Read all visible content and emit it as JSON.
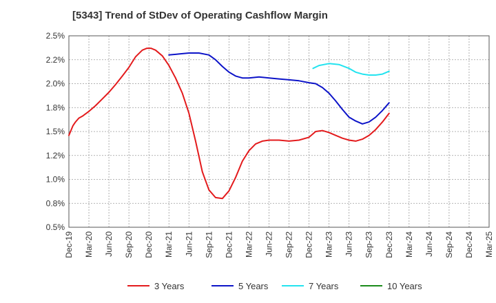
{
  "chart_data": {
    "type": "line",
    "title": "[5343]  Trend of StDev of Operating Cashflow Margin",
    "xlabel": "",
    "ylabel": "",
    "grid": true,
    "legend_position": "bottom",
    "x_tick_labels": [
      "Dec-19",
      "Mar-20",
      "Jun-20",
      "Sep-20",
      "Dec-20",
      "Mar-21",
      "Jun-21",
      "Sep-21",
      "Dec-21",
      "Mar-22",
      "Jun-22",
      "Sep-22",
      "Dec-22",
      "Mar-23",
      "Jun-23",
      "Sep-23",
      "Dec-23",
      "Mar-24",
      "Jun-24",
      "Sep-24",
      "Dec-24",
      "Mar-25"
    ],
    "y_tick_labels": [
      "0.5%",
      "0.8%",
      "1.0%",
      "1.2%",
      "1.5%",
      "1.8%",
      "2.0%",
      "2.2%",
      "2.5%"
    ],
    "ylim": [
      0.5,
      2.5
    ],
    "series": [
      {
        "name": "3 Years",
        "color": "#e31a1c",
        "points": [
          [
            0,
            1.46
          ],
          [
            0.2,
            1.56
          ],
          [
            0.33,
            1.6
          ],
          [
            0.5,
            1.64
          ],
          [
            0.67,
            1.66
          ],
          [
            1,
            1.71
          ],
          [
            1.33,
            1.77
          ],
          [
            1.67,
            1.84
          ],
          [
            2,
            1.91
          ],
          [
            2.33,
            1.99
          ],
          [
            2.67,
            2.08
          ],
          [
            3,
            2.17
          ],
          [
            3.33,
            2.28
          ],
          [
            3.67,
            2.35
          ],
          [
            3.9,
            2.37
          ],
          [
            4.1,
            2.37
          ],
          [
            4.33,
            2.35
          ],
          [
            4.67,
            2.29
          ],
          [
            5,
            2.19
          ],
          [
            5.33,
            2.06
          ],
          [
            5.67,
            1.9
          ],
          [
            6,
            1.69
          ],
          [
            6.33,
            1.4
          ],
          [
            6.67,
            1.08
          ],
          [
            7,
            0.89
          ],
          [
            7.33,
            0.81
          ],
          [
            7.67,
            0.8
          ],
          [
            8,
            0.88
          ],
          [
            8.33,
            1.02
          ],
          [
            8.67,
            1.19
          ],
          [
            9,
            1.3
          ],
          [
            9.33,
            1.37
          ],
          [
            9.67,
            1.4
          ],
          [
            10,
            1.41
          ],
          [
            10.5,
            1.41
          ],
          [
            11,
            1.4
          ],
          [
            11.5,
            1.41
          ],
          [
            12,
            1.44
          ],
          [
            12.33,
            1.5
          ],
          [
            12.67,
            1.51
          ],
          [
            13,
            1.49
          ],
          [
            13.33,
            1.46
          ],
          [
            13.67,
            1.43
          ],
          [
            14,
            1.41
          ],
          [
            14.33,
            1.4
          ],
          [
            14.67,
            1.42
          ],
          [
            15,
            1.46
          ],
          [
            15.33,
            1.52
          ],
          [
            15.67,
            1.6
          ],
          [
            16,
            1.69
          ]
        ]
      },
      {
        "name": "5 Years",
        "color": "#0c13c8",
        "points": [
          [
            5,
            2.3
          ],
          [
            5.5,
            2.31
          ],
          [
            6,
            2.32
          ],
          [
            6.5,
            2.32
          ],
          [
            7,
            2.3
          ],
          [
            7.33,
            2.25
          ],
          [
            7.67,
            2.18
          ],
          [
            8,
            2.12
          ],
          [
            8.33,
            2.08
          ],
          [
            8.67,
            2.06
          ],
          [
            9,
            2.06
          ],
          [
            9.5,
            2.07
          ],
          [
            10,
            2.06
          ],
          [
            10.5,
            2.05
          ],
          [
            11,
            2.04
          ],
          [
            11.5,
            2.03
          ],
          [
            12,
            2.01
          ],
          [
            12.33,
            2.0
          ],
          [
            12.67,
            1.96
          ],
          [
            13,
            1.9
          ],
          [
            13.33,
            1.82
          ],
          [
            13.67,
            1.73
          ],
          [
            14,
            1.65
          ],
          [
            14.33,
            1.61
          ],
          [
            14.67,
            1.58
          ],
          [
            15,
            1.6
          ],
          [
            15.33,
            1.65
          ],
          [
            15.67,
            1.72
          ],
          [
            16,
            1.8
          ]
        ]
      },
      {
        "name": "7 Years",
        "color": "#22e3ef",
        "points": [
          [
            12.2,
            2.16
          ],
          [
            12.5,
            2.19
          ],
          [
            13,
            2.21
          ],
          [
            13.5,
            2.2
          ],
          [
            14,
            2.16
          ],
          [
            14.33,
            2.12
          ],
          [
            14.67,
            2.1
          ],
          [
            15,
            2.09
          ],
          [
            15.33,
            2.09
          ],
          [
            15.67,
            2.1
          ],
          [
            16,
            2.13
          ]
        ]
      },
      {
        "name": "10 Years",
        "color": "#1a8a1a",
        "points": []
      }
    ]
  }
}
